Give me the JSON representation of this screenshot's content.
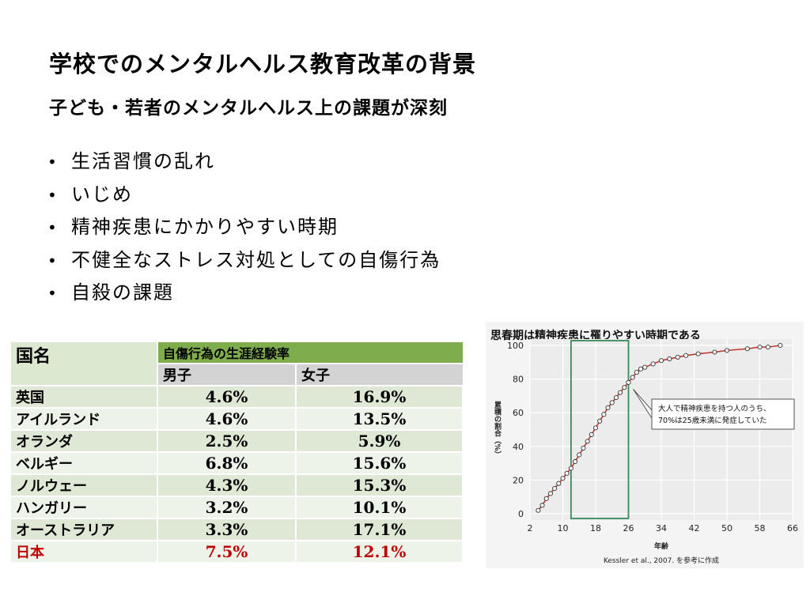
{
  "slide": {
    "title": "学校でのメンタルヘルス教育改革の背景",
    "subtitle": "子ども・若者のメンタルヘルス上の課題が深刻",
    "bullet_symbol": "•",
    "bullets": [
      "生活習慣の乱れ",
      "いじめ",
      "精神疾患にかかりやすい時期",
      "不健全なストレス対処としての自傷行為",
      "自殺の課題"
    ]
  },
  "table": {
    "col_name": "国名",
    "section": "自傷行為の生涯経験率",
    "col_male": "男子",
    "col_female": "女子",
    "rows": [
      {
        "country": "英国",
        "male": "4.6%",
        "female": "16.9%"
      },
      {
        "country": "アイルランド",
        "male": "4.6%",
        "female": "13.5%"
      },
      {
        "country": "オランダ",
        "male": "2.5%",
        "female": "5.9%"
      },
      {
        "country": "ベルギー",
        "male": "6.8%",
        "female": "15.6%"
      },
      {
        "country": "ノルウェー",
        "male": "4.3%",
        "female": "15.3%"
      },
      {
        "country": "ハンガリー",
        "male": "3.2%",
        "female": "10.1%"
      },
      {
        "country": "オーストラリア",
        "male": "3.3%",
        "female": "17.1%"
      },
      {
        "country": "日本",
        "male": "7.5%",
        "female": "12.1%"
      }
    ],
    "highlight_color": "#c00000"
  },
  "chart_data": {
    "type": "line",
    "title": "思春期は精神疾患に罹りやすい時期である",
    "xlabel": "年齢",
    "ylabel": "累積の割合（%）",
    "xlim": [
      2,
      66
    ],
    "ylim": [
      0,
      100
    ],
    "xticks": [
      2,
      10,
      18,
      26,
      34,
      42,
      50,
      58,
      66
    ],
    "yticks": [
      0,
      20,
      40,
      60,
      80,
      100
    ],
    "x": [
      4,
      5,
      6,
      7,
      8,
      9,
      10,
      11,
      12,
      13,
      14,
      15,
      16,
      17,
      18,
      19,
      20,
      21,
      22,
      23,
      24,
      25,
      26,
      27,
      28,
      29,
      30,
      32,
      34,
      36,
      38,
      40,
      43,
      47,
      50,
      55,
      58,
      60,
      63
    ],
    "y": [
      2,
      5,
      9,
      12,
      15,
      18,
      21,
      24,
      27,
      31,
      35,
      39,
      43,
      47,
      51,
      55,
      59,
      63,
      66,
      69,
      72,
      75,
      78,
      81,
      84,
      86,
      87,
      89,
      91,
      92,
      93,
      94,
      95,
      96,
      97,
      98,
      99,
      99,
      100
    ],
    "highlight_range": [
      12,
      26
    ],
    "annotation": {
      "line1": "大人で精神疾患を持つ人のうち、",
      "line2": "70%は25歳未満に発症していた"
    },
    "source": "Kessler et al., 2007. を参考に作成",
    "line_color": "#c0392b",
    "box_color": "#3a8a5a"
  }
}
